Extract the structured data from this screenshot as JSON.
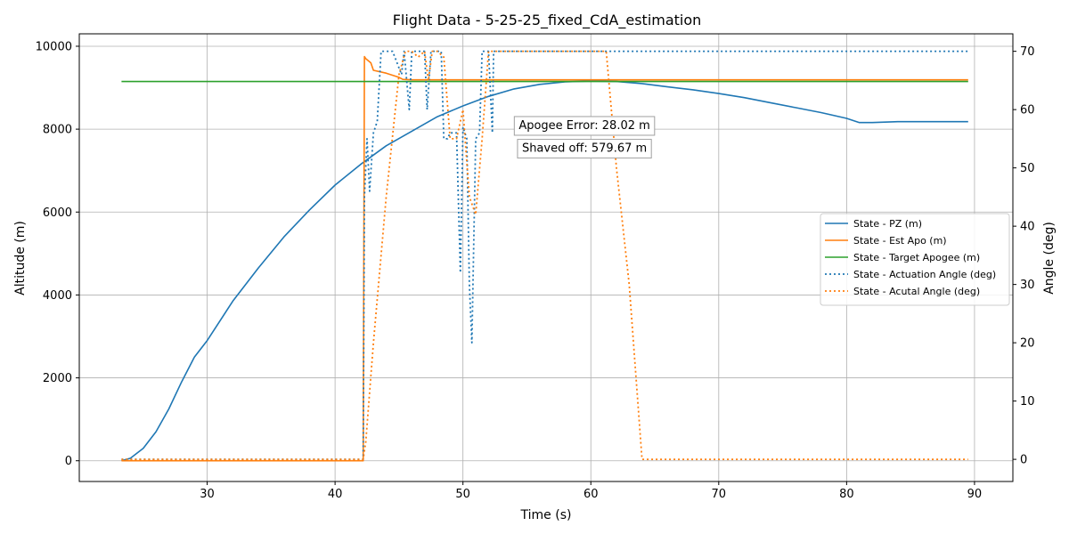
{
  "chart_data": {
    "type": "line",
    "title": "Flight Data - 5-25-25_fixed_CdA_estimation",
    "xlabel": "Time (s)",
    "ylabel": "Altitude (m)",
    "y2label": "Angle (deg)",
    "xlim": [
      20,
      93
    ],
    "ylim": [
      -500,
      10300
    ],
    "y2lim": [
      -3.8,
      73
    ],
    "xticks": [
      30,
      40,
      50,
      60,
      70,
      80,
      90
    ],
    "yticks": [
      0,
      2000,
      4000,
      6000,
      8000,
      10000
    ],
    "y2ticks": [
      0,
      10,
      20,
      30,
      40,
      50,
      60,
      70
    ],
    "grid": true,
    "legend_position": "center-right",
    "series": [
      {
        "name": "State - PZ (m)",
        "axis": "left",
        "color": "#1f77b4",
        "style": "solid",
        "x": [
          23.3,
          24,
          25,
          26,
          27,
          28,
          29,
          30,
          32,
          34,
          36,
          38,
          40,
          42,
          44,
          46,
          48,
          50,
          52,
          54,
          56,
          58,
          60,
          62,
          64,
          66,
          68,
          70,
          72,
          74,
          76,
          78,
          80,
          81,
          82,
          84,
          86,
          88,
          89.5
        ],
        "values": [
          0,
          60,
          300,
          700,
          1250,
          1900,
          2500,
          2900,
          3850,
          4650,
          5400,
          6050,
          6650,
          7150,
          7600,
          7950,
          8300,
          8560,
          8790,
          8970,
          9080,
          9140,
          9160,
          9150,
          9100,
          9020,
          8950,
          8860,
          8760,
          8640,
          8520,
          8400,
          8260,
          8160,
          8160,
          8180,
          8180,
          8180,
          8180
        ]
      },
      {
        "name": "State - Est Apo (m)",
        "axis": "left",
        "color": "#ff7f0e",
        "style": "solid",
        "x": [
          23.3,
          42.2,
          42.3,
          42.4,
          42.8,
          43,
          44,
          45,
          45.3,
          46,
          47,
          48,
          49,
          50,
          51,
          52,
          55,
          60,
          70,
          80,
          89.5
        ],
        "values": [
          0,
          0,
          9750,
          9700,
          9600,
          9420,
          9350,
          9250,
          9200,
          9190,
          9190,
          9190,
          9190,
          9190,
          9190,
          9190,
          9190,
          9190,
          9190,
          9190,
          9190
        ]
      },
      {
        "name": "State - Target Apogee (m)",
        "axis": "left",
        "color": "#2ca02c",
        "style": "solid",
        "x": [
          23.3,
          89.5
        ],
        "values": [
          9150,
          9150
        ]
      },
      {
        "name": "State - Actuation Angle (deg)",
        "axis": "right",
        "color": "#1f77b4",
        "style": "dotted",
        "x": [
          23.3,
          42.2,
          42.3,
          42.5,
          42.7,
          43.0,
          43.3,
          43.6,
          43.8,
          44.5,
          45.2,
          45.4,
          45.8,
          46.0,
          46.5,
          47.0,
          47.2,
          47.5,
          48.0,
          48.3,
          48.5,
          48.8,
          49.0,
          49.5,
          49.8,
          50.0,
          50.3,
          50.5,
          50.7,
          51.0,
          51.3,
          51.5,
          51.8,
          52.0,
          52.3,
          52.4,
          52.5,
          53.0,
          60,
          70,
          80,
          89.5
        ],
        "values": [
          0,
          0,
          45,
          55,
          46,
          56,
          58,
          70,
          70,
          70,
          66,
          70,
          60,
          70,
          70,
          70,
          60,
          70,
          70,
          70,
          55,
          55,
          56,
          56,
          32,
          57,
          55,
          30,
          20,
          55,
          56,
          70,
          70,
          70,
          56,
          70,
          70,
          70,
          70,
          70,
          70,
          70
        ]
      },
      {
        "name": "State - Acutal Angle (deg)",
        "axis": "right",
        "color": "#ff7f0e",
        "style": "dotted",
        "x": [
          23.3,
          42.2,
          42.4,
          43.0,
          44.0,
          45.0,
          45.5,
          46.0,
          46.5,
          47.0,
          47.3,
          47.6,
          48.0,
          48.5,
          49.0,
          49.5,
          50.0,
          50.5,
          51.0,
          51.5,
          52.0,
          52.3,
          61.2,
          62.0,
          63.0,
          64.0,
          70,
          80,
          89.5
        ],
        "values": [
          0,
          0,
          3,
          20,
          45,
          66,
          70,
          70,
          69,
          70,
          65,
          70,
          70,
          69,
          55,
          55,
          60,
          45,
          42,
          55,
          70,
          70,
          70,
          50,
          30,
          0,
          0,
          0,
          0
        ]
      }
    ],
    "annotations": [
      {
        "text": "Apogee Error: 28.02 m",
        "x": 59.5,
        "y": 8100
      },
      {
        "text": "Shaved off: 579.67 m",
        "x": 59.5,
        "y": 7550
      }
    ]
  }
}
